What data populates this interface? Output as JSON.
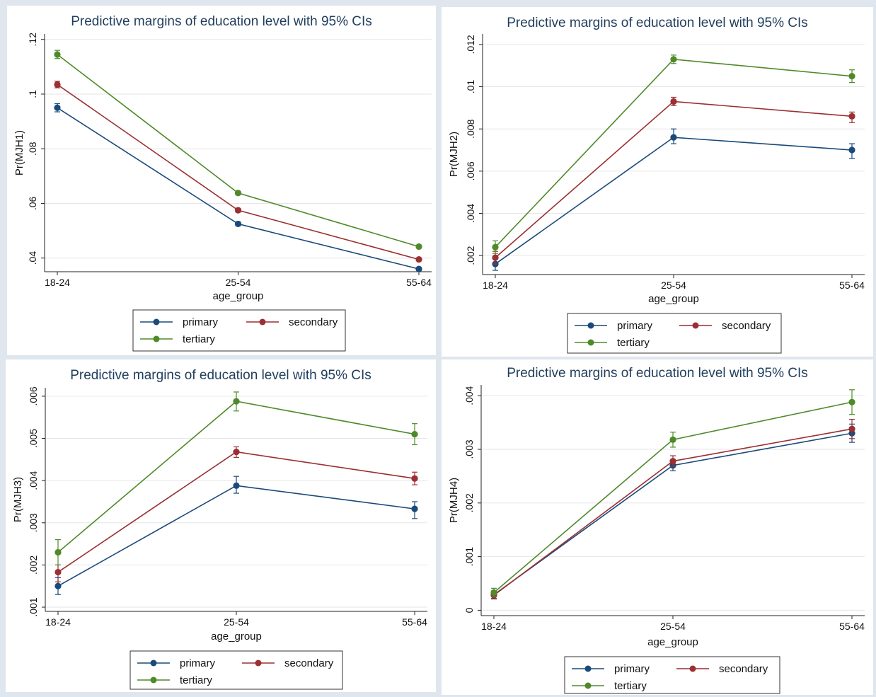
{
  "colors": {
    "primary": "#1a4a7a",
    "secondary": "#9b2f32",
    "tertiary": "#4f8a2a",
    "grid": "#e6e6e6"
  },
  "chart_data": [
    {
      "type": "line",
      "title": "Predictive margins of education level with 95% CIs",
      "xlabel": "age_group",
      "ylabel": "Pr(MJH1)",
      "categories": [
        "18-24",
        "25-54",
        "55-64"
      ],
      "ylim": [
        0.035,
        0.122
      ],
      "yticks": [
        0.04,
        0.06,
        0.08,
        0.1,
        0.12
      ],
      "ytick_labels": [
        ".04",
        ".06",
        ".08",
        ".1",
        ".12"
      ],
      "grid": true,
      "legend_position": "bottom",
      "series": [
        {
          "name": "primary",
          "values": [
            0.095,
            0.0525,
            0.036
          ],
          "ci": [
            [
              0.0935,
              0.0965
            ],
            [
              0.0518,
              0.0532
            ],
            [
              0.0355,
              0.0365
            ]
          ]
        },
        {
          "name": "secondary",
          "values": [
            0.1035,
            0.0575,
            0.0395
          ],
          "ci": [
            [
              0.1023,
              0.1047
            ],
            [
              0.0568,
              0.0582
            ],
            [
              0.039,
              0.04
            ]
          ]
        },
        {
          "name": "tertiary",
          "values": [
            0.1145,
            0.0638,
            0.0442
          ],
          "ci": [
            [
              0.113,
              0.116
            ],
            [
              0.0632,
              0.0644
            ],
            [
              0.0437,
              0.0447
            ]
          ]
        }
      ]
    },
    {
      "type": "line",
      "title": "Predictive margins of education level with 95% CIs",
      "xlabel": "age_group",
      "ylabel": "Pr(MJH2)",
      "categories": [
        "18-24",
        "25-54",
        "55-64"
      ],
      "ylim": [
        0.0011,
        0.0125
      ],
      "yticks": [
        0.002,
        0.004,
        0.006,
        0.008,
        0.01,
        0.012
      ],
      "ytick_labels": [
        ".002",
        ".004",
        ".006",
        ".008",
        ".01",
        ".012"
      ],
      "grid": true,
      "legend_position": "bottom",
      "series": [
        {
          "name": "primary",
          "values": [
            0.0016,
            0.0076,
            0.007
          ],
          "ci": [
            [
              0.0013,
              0.0019
            ],
            [
              0.0073,
              0.008
            ],
            [
              0.0066,
              0.0073
            ]
          ]
        },
        {
          "name": "secondary",
          "values": [
            0.0019,
            0.0093,
            0.0086
          ],
          "ci": [
            [
              0.0016,
              0.0022
            ],
            [
              0.0091,
              0.0095
            ],
            [
              0.0083,
              0.0088
            ]
          ]
        },
        {
          "name": "tertiary",
          "values": [
            0.0024,
            0.0113,
            0.0105
          ],
          "ci": [
            [
              0.0021,
              0.0027
            ],
            [
              0.0111,
              0.0115
            ],
            [
              0.0102,
              0.0108
            ]
          ]
        }
      ]
    },
    {
      "type": "line",
      "title": "Predictive margins of education level with 95% CIs",
      "xlabel": "age_group",
      "ylabel": "Pr(MJH3)",
      "categories": [
        "18-24",
        "25-54",
        "55-64"
      ],
      "ylim": [
        0.0009,
        0.0062
      ],
      "yticks": [
        0.001,
        0.002,
        0.003,
        0.004,
        0.005,
        0.006
      ],
      "ytick_labels": [
        ".001",
        ".002",
        ".003",
        ".004",
        ".005",
        ".006"
      ],
      "grid": true,
      "legend_position": "bottom",
      "series": [
        {
          "name": "primary",
          "values": [
            0.0015,
            0.00388,
            0.00333
          ],
          "ci": [
            [
              0.0013,
              0.0017
            ],
            [
              0.0037,
              0.0041
            ],
            [
              0.0031,
              0.0035
            ]
          ]
        },
        {
          "name": "secondary",
          "values": [
            0.00183,
            0.00468,
            0.00405
          ],
          "ci": [
            [
              0.0016,
              0.002
            ],
            [
              0.00455,
              0.0048
            ],
            [
              0.0039,
              0.0042
            ]
          ]
        },
        {
          "name": "tertiary",
          "values": [
            0.0023,
            0.00588,
            0.0051
          ],
          "ci": [
            [
              0.002,
              0.0026
            ],
            [
              0.00565,
              0.0061
            ],
            [
              0.00485,
              0.00535
            ]
          ]
        }
      ]
    },
    {
      "type": "line",
      "title": "Predictive margins of education level  with 95% CIs",
      "xlabel": "age_group",
      "ylabel": "Pr(MJH4)",
      "categories": [
        "18-24",
        "25-54",
        "55-64"
      ],
      "ylim": [
        -0.0001,
        0.0042
      ],
      "yticks": [
        0,
        0.001,
        0.002,
        0.003,
        0.004
      ],
      "ytick_labels": [
        "0",
        ".001",
        ".002",
        ".003",
        ".004"
      ],
      "grid": true,
      "legend_position": "bottom",
      "series": [
        {
          "name": "primary",
          "values": [
            0.00029,
            0.0027,
            0.0033
          ],
          "ci": [
            [
              0.00022,
              0.00036
            ],
            [
              0.0026,
              0.0028
            ],
            [
              0.00313,
              0.00347
            ]
          ]
        },
        {
          "name": "secondary",
          "values": [
            0.00028,
            0.00278,
            0.00338
          ],
          "ci": [
            [
              0.00021,
              0.00035
            ],
            [
              0.00268,
              0.00288
            ],
            [
              0.0032,
              0.00356
            ]
          ]
        },
        {
          "name": "tertiary",
          "values": [
            0.00033,
            0.00318,
            0.00388
          ],
          "ci": [
            [
              0.00025,
              0.00041
            ],
            [
              0.00304,
              0.00332
            ],
            [
              0.00365,
              0.00411
            ]
          ]
        }
      ]
    }
  ]
}
